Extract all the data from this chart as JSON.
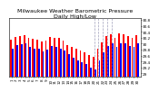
{
  "title": "Milwaukee Weather Barometric Pressure",
  "subtitle": "Daily High/Low",
  "bar_highs": [
    30.12,
    30.22,
    30.24,
    30.28,
    30.18,
    30.16,
    30.14,
    30.06,
    30.1,
    30.22,
    30.2,
    30.18,
    30.1,
    29.96,
    29.9,
    29.84,
    29.78,
    29.72,
    29.62,
    29.55,
    29.82,
    30.04,
    30.24,
    30.32,
    30.2,
    30.34,
    30.3,
    30.24,
    30.2,
    30.28
  ],
  "bar_lows": [
    29.84,
    29.94,
    29.98,
    30.02,
    29.9,
    29.84,
    29.82,
    29.74,
    29.8,
    29.92,
    29.9,
    29.84,
    29.76,
    29.64,
    29.52,
    29.44,
    29.38,
    29.3,
    29.2,
    29.12,
    29.44,
    29.7,
    29.92,
    30.02,
    29.9,
    30.0,
    30.0,
    29.92,
    29.9,
    30.0
  ],
  "ylim_min": 28.9,
  "ylim_max": 30.85,
  "ytick_values": [
    29.0,
    29.2,
    29.4,
    29.6,
    29.8,
    30.0,
    30.2,
    30.4,
    30.6,
    30.8
  ],
  "ytick_labels": [
    "29",
    "29.2",
    "29.4",
    "29.6",
    "29.8",
    "30",
    "30.2",
    "30.4",
    "30.6",
    "30.8"
  ],
  "xlabels": [
    "1",
    "2",
    "3",
    "4",
    "5",
    "6",
    "7",
    "8",
    "9",
    "10",
    "11",
    "12",
    "13",
    "14",
    "15",
    "16",
    "17",
    "18",
    "19",
    "20",
    "21",
    "22",
    "23",
    "24",
    "25",
    "26",
    "27",
    "28",
    "29",
    "30"
  ],
  "color_high": "#FF0000",
  "color_low": "#0000FF",
  "bg_color": "#FFFFFF",
  "dashed_indices": [
    19,
    20,
    21,
    22,
    23
  ],
  "title_fontsize": 4.5,
  "tick_fontsize": 3.0,
  "bar_width": 0.38,
  "bar_gap": 0.02
}
